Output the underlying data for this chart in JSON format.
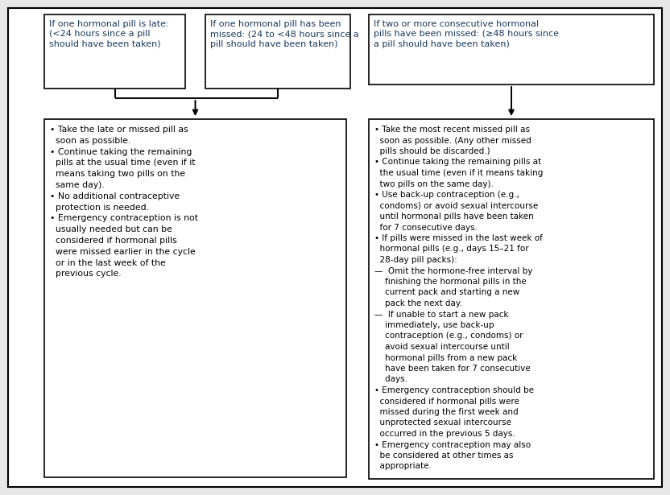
{
  "bg_color": "#e8e8e8",
  "box_color": "#ffffff",
  "border_color": "#000000",
  "blue_text": "#1a3a5c",
  "arrow_color": "#000000",
  "box1_title": "If one hormonal pill is late:\n(<24 hours since a pill\nshould have been taken)",
  "box2_title": "If one hormonal pill has been\nmissed: (24 to <48 hours since a\npill should have been taken)",
  "box3_title": "If two or more consecutive hormonal\npills have been missed: (≥48 hours since\na pill should have been taken)",
  "box_middle_lines": [
    "• Take the late or missed pill as",
    "  soon as possible.",
    "• Continue taking the remaining",
    "  pills at the usual time (even if it",
    "  means taking two pills on the",
    "  same day).",
    "• No additional contraceptive",
    "  protection is needed.",
    "• Emergency contraception is not",
    "  usually needed but can be",
    "  considered if hormonal pills",
    "  were missed earlier in the cycle",
    "  or in the last week of the",
    "  previous cycle."
  ],
  "box_right_lines": [
    "• Take the most recent missed pill as",
    "  soon as possible. (Any other missed",
    "  pills should be discarded.)",
    "• Continue taking the remaining pills at",
    "  the usual time (even if it means taking",
    "  two pills on the same day).",
    "• Use back-up contraception (e.g.,",
    "  condoms) or avoid sexual intercourse",
    "  until hormonal pills have been taken",
    "  for 7 consecutive days.",
    "• If pills were missed in the last week of",
    "  hormonal pills (e.g., days 15–21 for",
    "  28-day pill packs):",
    "—  Omit the hormone-free interval by",
    "    finishing the hormonal pills in the",
    "    current pack and starting a new",
    "    pack the next day.",
    "—  If unable to start a new pack",
    "    immediately, use back-up",
    "    contraception (e.g., condoms) or",
    "    avoid sexual intercourse until",
    "    hormonal pills from a new pack",
    "    have been taken for 7 consecutive",
    "    days.",
    "• Emergency contraception should be",
    "  considered if hormonal pills were",
    "  missed during the first week and",
    "  unprotected sexual intercourse",
    "  occurred in the previous 5 days.",
    "• Emergency contraception may also",
    "  be considered at other times as",
    "  appropriate."
  ],
  "figw": 8.32,
  "figh": 6.15,
  "dpi": 100
}
